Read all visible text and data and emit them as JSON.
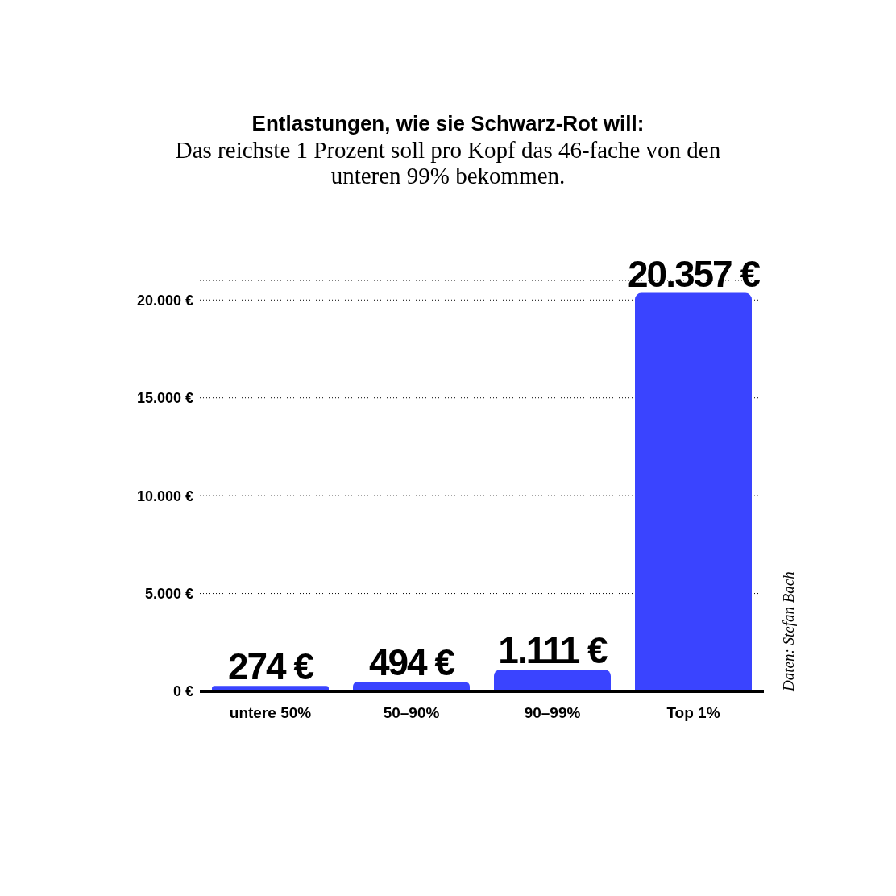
{
  "chart_data": {
    "type": "bar",
    "title": "Entlastungen, wie sie Schwarz-Rot will:",
    "subtitle": "Das reichste 1 Prozent soll pro Kopf das 46-fache von den unteren 99% bekommen.",
    "categories": [
      "untere 50%",
      "50–90%",
      "90–99%",
      "Top 1%"
    ],
    "values": [
      274,
      494,
      1111,
      20357
    ],
    "value_labels": [
      "274 €",
      "494 €",
      "1.111 €",
      "20.357 €"
    ],
    "color": "#3a44ff",
    "ylim": [
      0,
      21000
    ],
    "yticks": [
      {
        "value": 0,
        "label": "0 €"
      },
      {
        "value": 5000,
        "label": "5.000 €"
      },
      {
        "value": 10000,
        "label": "10.000 €"
      },
      {
        "value": 15000,
        "label": "15.000 €"
      },
      {
        "value": 20000,
        "label": "20.000 €"
      }
    ],
    "grid": "y",
    "annotations": [
      "Daten: Stefan Bach"
    ]
  }
}
